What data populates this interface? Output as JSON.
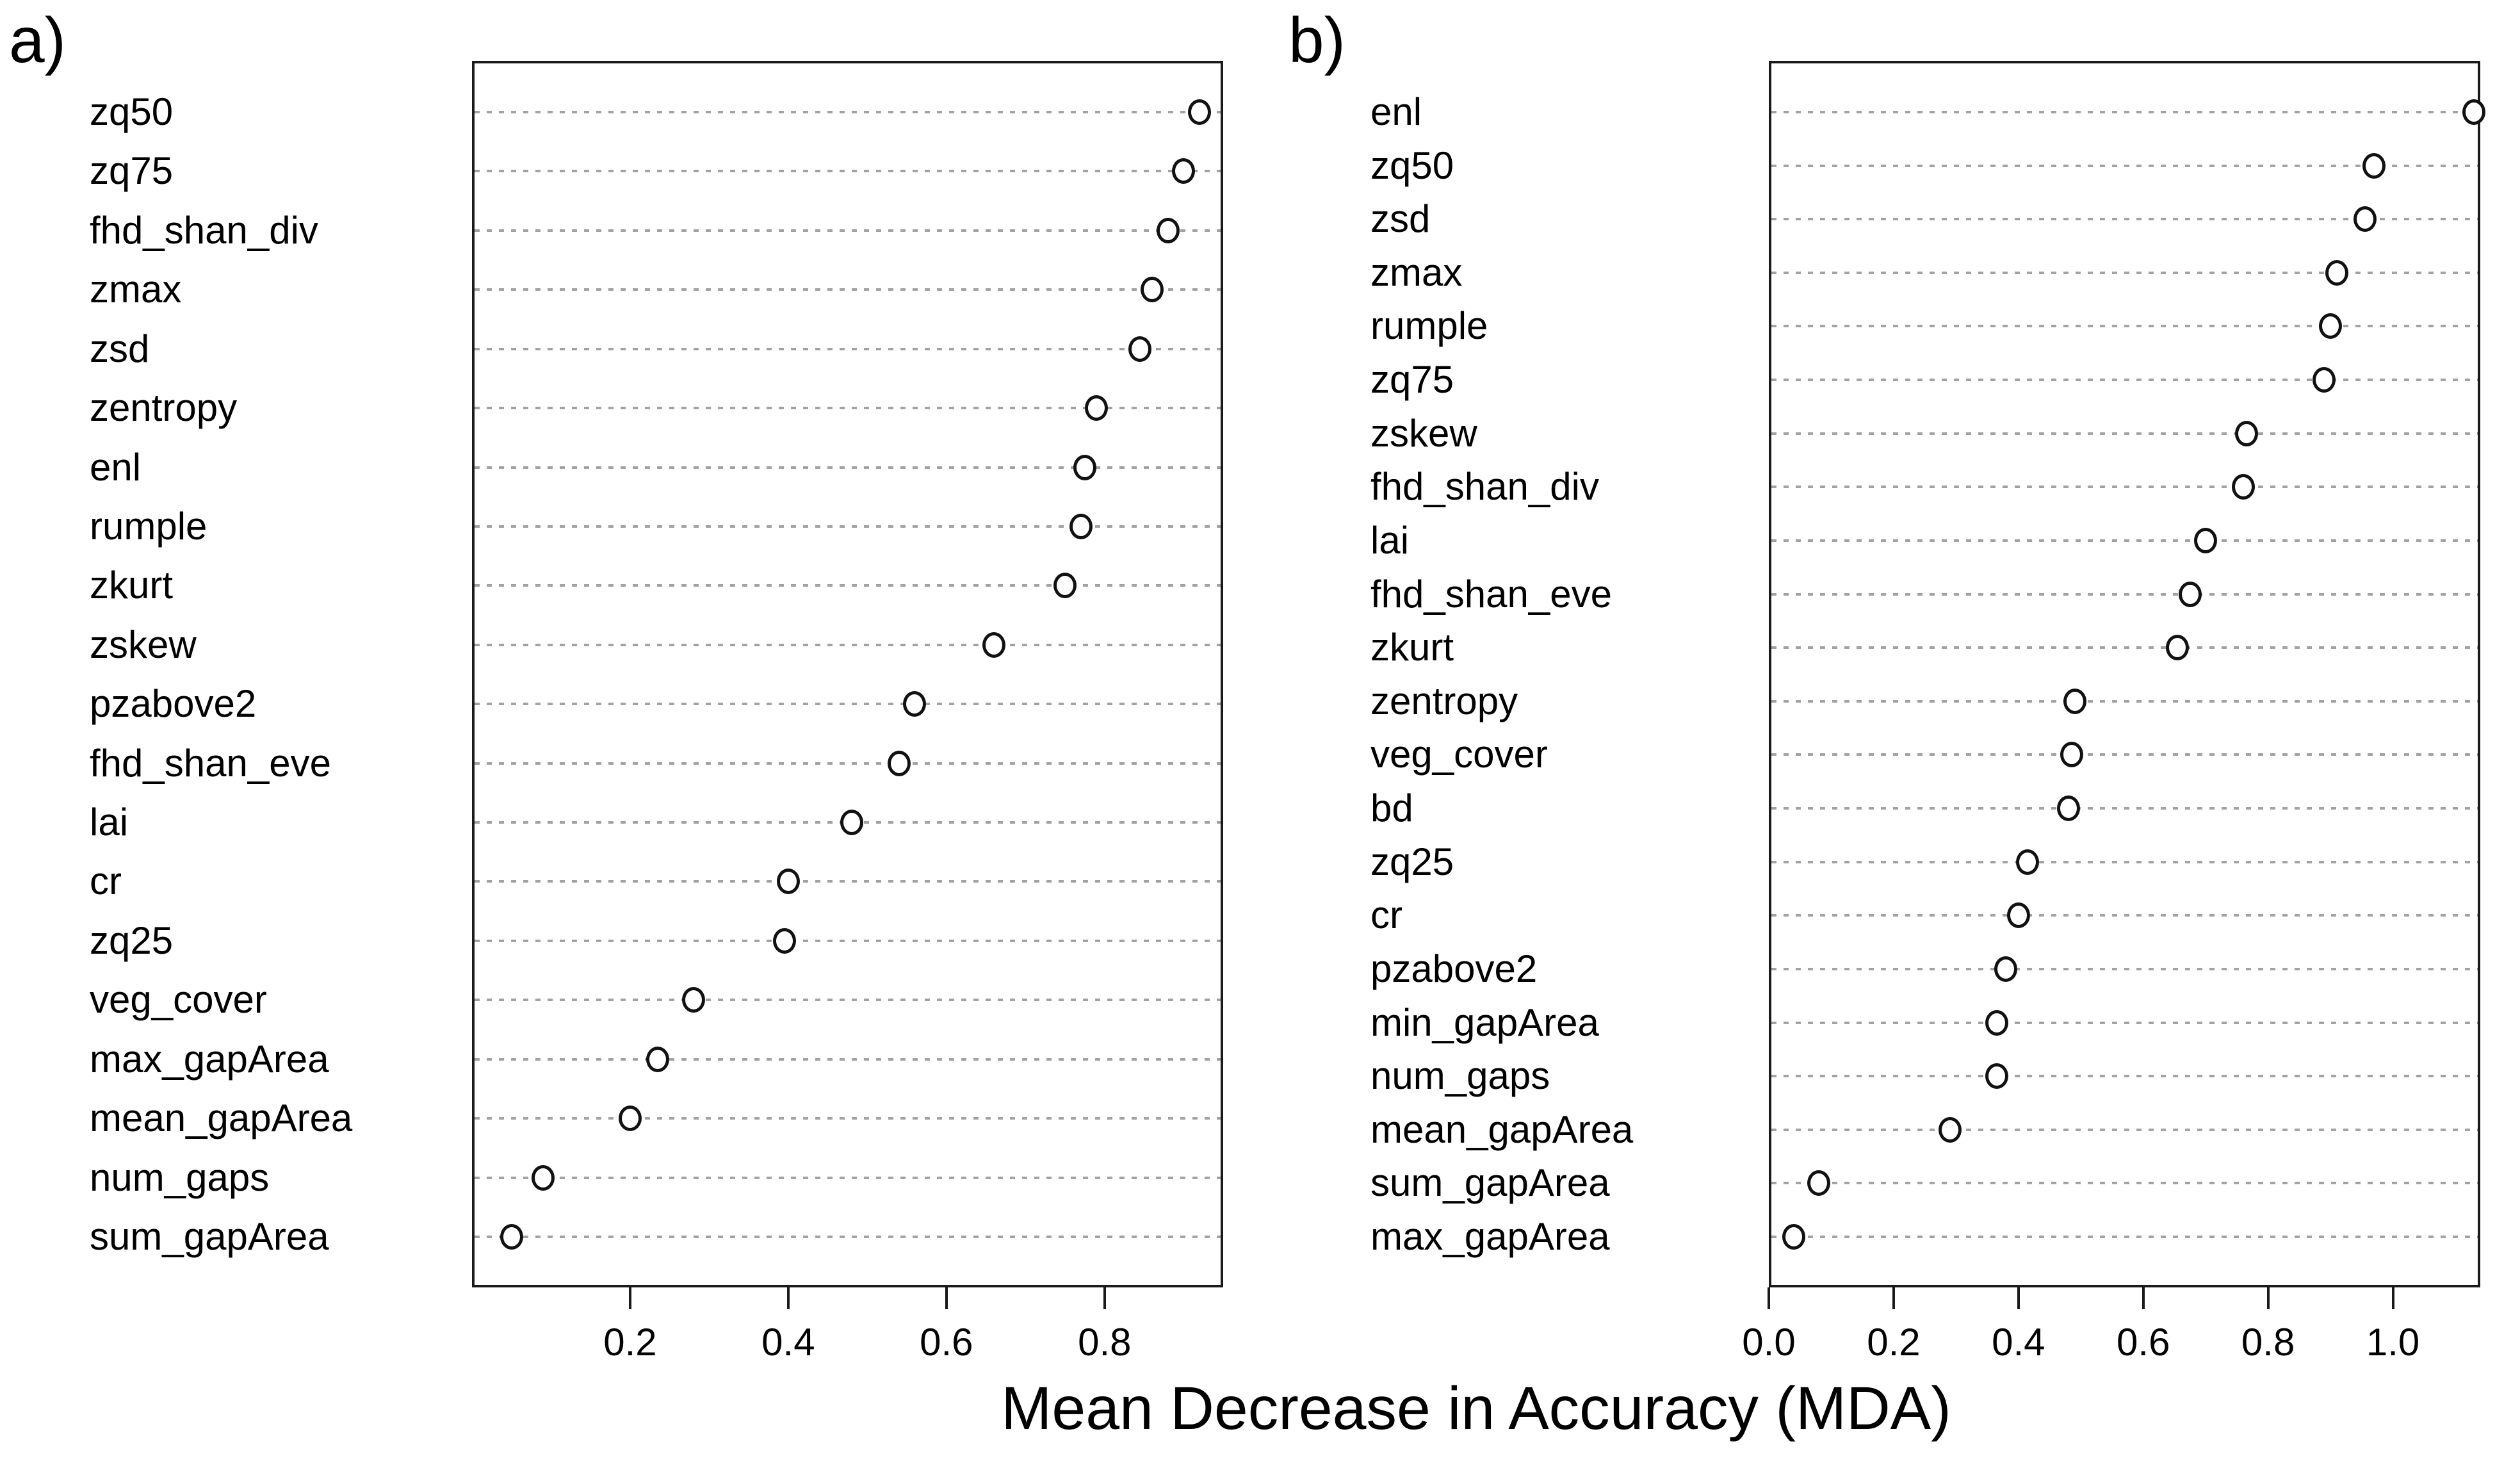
{
  "figure": {
    "xlabel": "Mean Decrease in Accuracy (MDA)",
    "background": "#ffffff",
    "colors": {
      "text": "#000000",
      "box_border": "#1a1a1a",
      "grid": "#a2a2a2",
      "marker_stroke": "#111111",
      "marker_fill": "#ffffff"
    }
  },
  "chart_data": [
    {
      "type": "scatter",
      "subtype": "dot-plot-variable-importance",
      "panel_tag": "a)",
      "xlabel": "Mean Decrease in Accuracy (MDA)",
      "categories": [
        "zq50",
        "zq75",
        "fhd_shan_div",
        "zmax",
        "zsd",
        "zentropy",
        "enl",
        "rumple",
        "zkurt",
        "zskew",
        "pzabove2",
        "fhd_shan_eve",
        "lai",
        "cr",
        "zq25",
        "veg_cover",
        "max_gapArea",
        "mean_gapArea",
        "num_gaps",
        "sum_gapArea"
      ],
      "values": [
        0.92,
        0.9,
        0.88,
        0.86,
        0.845,
        0.79,
        0.775,
        0.77,
        0.75,
        0.66,
        0.56,
        0.54,
        0.48,
        0.4,
        0.395,
        0.28,
        0.235,
        0.2,
        0.09,
        0.05
      ],
      "xlim": [
        0,
        0.95
      ],
      "x_ticks": [
        0.2,
        0.4,
        0.6,
        0.8
      ],
      "x_tick_labels": [
        "0.2",
        "0.4",
        "0.6",
        "0.8"
      ],
      "grid": "dotted-horizontal",
      "legend": "none",
      "marker": "open-circle"
    },
    {
      "type": "scatter",
      "subtype": "dot-plot-variable-importance",
      "panel_tag": "b)",
      "xlabel": "Mean Decrease in Accuracy (MDA)",
      "categories": [
        "enl",
        "zq50",
        "zsd",
        "zmax",
        "rumple",
        "zq75",
        "zskew",
        "fhd_shan_div",
        "lai",
        "fhd_shan_eve",
        "zkurt",
        "zentropy",
        "veg_cover",
        "bd",
        "zq25",
        "cr",
        "pzabove2",
        "min_gapArea",
        "num_gaps",
        "mean_gapArea",
        "sum_gapArea",
        "max_gapArea"
      ],
      "values": [
        1.13,
        0.97,
        0.955,
        0.91,
        0.9,
        0.89,
        0.765,
        0.76,
        0.7,
        0.675,
        0.655,
        0.49,
        0.485,
        0.48,
        0.415,
        0.4,
        0.38,
        0.365,
        0.365,
        0.29,
        0.08,
        0.04
      ],
      "xlim": [
        0,
        1.14
      ],
      "x_ticks": [
        0.0,
        0.2,
        0.4,
        0.6,
        0.8,
        1.0
      ],
      "x_tick_labels": [
        "0.0",
        "0.2",
        "0.4",
        "0.6",
        "0.8",
        "1.0"
      ],
      "grid": "dotted-horizontal",
      "legend": "none",
      "marker": "open-circle"
    }
  ]
}
